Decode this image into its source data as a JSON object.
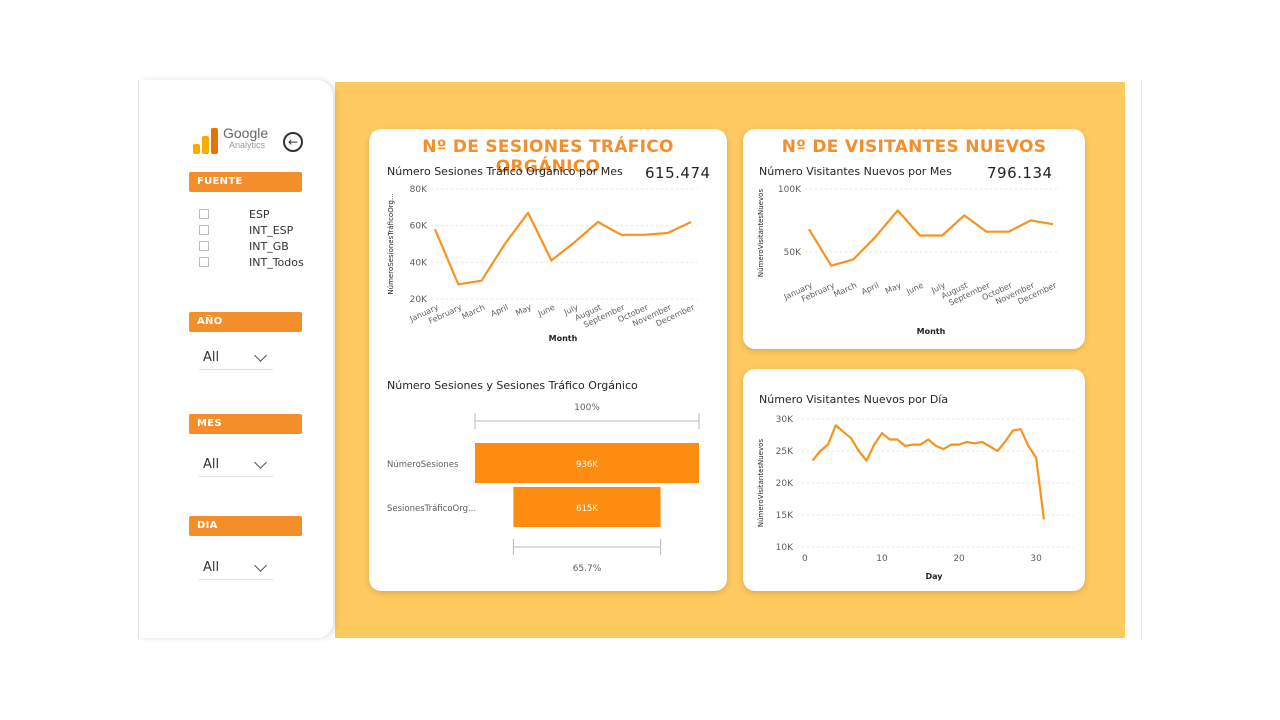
{
  "sidebar": {
    "logo": {
      "line1": "Google",
      "line2": "Analytics"
    },
    "back_icon": "circle-arrow-left-icon",
    "fuente": {
      "header": "FUENTE",
      "options": [
        "ESP",
        "INT_ESP",
        "INT_GB",
        "INT_Todos"
      ]
    },
    "anio": {
      "header": "AÑO",
      "value": "All"
    },
    "mes": {
      "header": "MES",
      "value": "All"
    },
    "dia": {
      "header": "DIA",
      "value": "All"
    }
  },
  "exit_icon": "arrow-left-icon",
  "card_organic": {
    "title": "Nº DE SESIONES TRÁFICO ORGÁNICO",
    "line_chart_title": "Número Sesiones Tráfico Orgánico por Mes",
    "kpi": "615.474",
    "funnel_title": "Número Sesiones y Sesiones Tráfico Orgánico"
  },
  "card_visitors": {
    "title": "Nº DE VISITANTES NUEVOS",
    "line_chart_title": "Número Visitantes Nuevos por Mes",
    "kpi": "796.134"
  },
  "card_daily": {
    "line_chart_title": "Número Visitantes Nuevos por Día"
  },
  "colors": {
    "accent": "#f48e2a",
    "line": "#f7931e",
    "background": "#fec95f"
  },
  "chart_data": [
    {
      "type": "line",
      "id": "organic_monthly",
      "x": [
        "January",
        "February",
        "March",
        "April",
        "May",
        "June",
        "July",
        "August",
        "September",
        "October",
        "November",
        "December"
      ],
      "values": [
        58000,
        28000,
        30000,
        50000,
        67000,
        41000,
        51000,
        62000,
        55000,
        55000,
        56000,
        62000
      ],
      "xlabel": "Month",
      "ylabel": "NúmeroSesionesTráficoOrg...",
      "yticks": [
        "20K",
        "40K",
        "60K",
        "80K"
      ],
      "ylim": [
        20000,
        80000
      ],
      "grid": true
    },
    {
      "type": "bar",
      "id": "funnel",
      "categories": [
        "NúmeroSesiones",
        "SesionesTráficoOrg..."
      ],
      "values": [
        936,
        615
      ],
      "labels": [
        "936K",
        "615K"
      ],
      "top_percent": "100%",
      "bottom_percent": "65.7%"
    },
    {
      "type": "line",
      "id": "visitors_monthly",
      "x": [
        "January",
        "February",
        "March",
        "April",
        "May",
        "June",
        "July",
        "August",
        "September",
        "October",
        "November",
        "December"
      ],
      "values": [
        68000,
        39000,
        44000,
        62000,
        83000,
        63000,
        63000,
        79000,
        66000,
        66000,
        75000,
        72000
      ],
      "xlabel": "Month",
      "ylabel": "NúmeroVisitantesNuevos",
      "yticks": [
        "50K",
        "100K"
      ],
      "ylim": [
        30000,
        100000
      ],
      "grid": true
    },
    {
      "type": "line",
      "id": "visitors_daily",
      "x": [
        1,
        2,
        3,
        4,
        5,
        6,
        7,
        8,
        9,
        10,
        11,
        12,
        13,
        14,
        15,
        16,
        17,
        18,
        19,
        20,
        21,
        22,
        23,
        24,
        25,
        26,
        27,
        28,
        29,
        30,
        31
      ],
      "values": [
        23500,
        25000,
        26000,
        29000,
        28000,
        27000,
        25000,
        23500,
        26000,
        27800,
        26800,
        26800,
        25800,
        26000,
        26000,
        26800,
        25800,
        25300,
        26000,
        26000,
        26400,
        26200,
        26400,
        25700,
        25000,
        26500,
        28200,
        28400,
        25800,
        23900,
        14300
      ],
      "xlabel": "Day",
      "ylabel": "NúmeroVisitantesNuevos",
      "xticks": [
        "0",
        "10",
        "20",
        "30"
      ],
      "yticks": [
        "10K",
        "15K",
        "20K",
        "25K",
        "30K"
      ],
      "ylim": [
        10000,
        30000
      ],
      "grid": true
    }
  ]
}
